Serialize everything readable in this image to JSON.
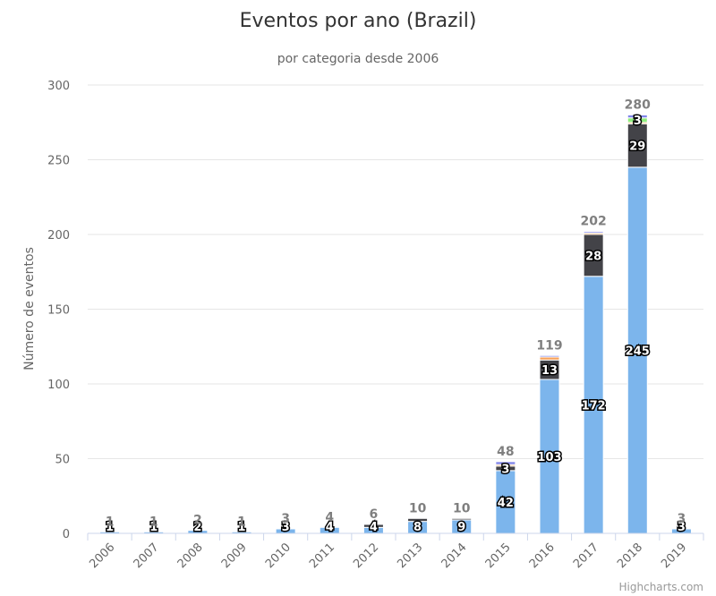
{
  "chart_data": {
    "type": "bar",
    "stacked": true,
    "title": "Eventos por ano (Brazil)",
    "subtitle": "por categoria desde 2006",
    "xlabel": "",
    "ylabel": "Número de eventos",
    "ylim": [
      0,
      300
    ],
    "yticks": [
      0,
      50,
      100,
      150,
      200,
      250,
      300
    ],
    "grid": true,
    "categories": [
      "2006",
      "2007",
      "2008",
      "2009",
      "2010",
      "2011",
      "2012",
      "2013",
      "2014",
      "2015",
      "2016",
      "2017",
      "2018",
      "2019"
    ],
    "series": [
      {
        "color": "#7cb5ec",
        "values": [
          1,
          1,
          2,
          1,
          3,
          4,
          4,
          8,
          9,
          42,
          103,
          172,
          245,
          3
        ]
      },
      {
        "color": "#434348",
        "values": [
          0,
          0,
          0,
          0,
          0,
          0,
          2,
          2,
          1,
          3,
          13,
          28,
          29,
          0
        ]
      },
      {
        "color": "#f7a35c",
        "values": [
          0,
          0,
          0,
          0,
          0,
          0,
          0,
          0,
          0,
          1,
          2,
          1,
          1,
          0
        ]
      },
      {
        "color": "#90ed7d",
        "values": [
          0,
          0,
          0,
          0,
          0,
          0,
          0,
          0,
          0,
          0,
          0,
          0,
          3,
          0
        ]
      },
      {
        "color": "#8085e9",
        "values": [
          0,
          0,
          0,
          0,
          0,
          0,
          0,
          0,
          0,
          2,
          1,
          1,
          2,
          0
        ]
      }
    ],
    "segment_labels": {
      "2006": [
        {
          "series": 0,
          "text": "1"
        }
      ],
      "2007": [
        {
          "series": 0,
          "text": "1"
        }
      ],
      "2008": [
        {
          "series": 0,
          "text": "2"
        }
      ],
      "2009": [
        {
          "series": 0,
          "text": "1"
        }
      ],
      "2010": [
        {
          "series": 0,
          "text": "3"
        }
      ],
      "2011": [
        {
          "series": 0,
          "text": "4"
        }
      ],
      "2012": [
        {
          "series": 0,
          "text": "4"
        }
      ],
      "2013": [
        {
          "series": 0,
          "text": "8"
        }
      ],
      "2014": [
        {
          "series": 0,
          "text": "9"
        }
      ],
      "2015": [
        {
          "series": 0,
          "text": "42"
        },
        {
          "series": 1,
          "text": "3"
        }
      ],
      "2016": [
        {
          "series": 0,
          "text": "103"
        },
        {
          "series": 1,
          "text": "13"
        }
      ],
      "2017": [
        {
          "series": 0,
          "text": "172"
        },
        {
          "series": 1,
          "text": "28"
        }
      ],
      "2018": [
        {
          "series": 0,
          "text": "245"
        },
        {
          "series": 1,
          "text": "29"
        },
        {
          "series": 3,
          "text": "3"
        }
      ],
      "2019": [
        {
          "series": 0,
          "text": "3"
        }
      ]
    },
    "totals": [
      1,
      1,
      2,
      1,
      3,
      4,
      6,
      10,
      10,
      48,
      119,
      202,
      280,
      3
    ],
    "legend": "none"
  },
  "credit": "Highcharts.com"
}
